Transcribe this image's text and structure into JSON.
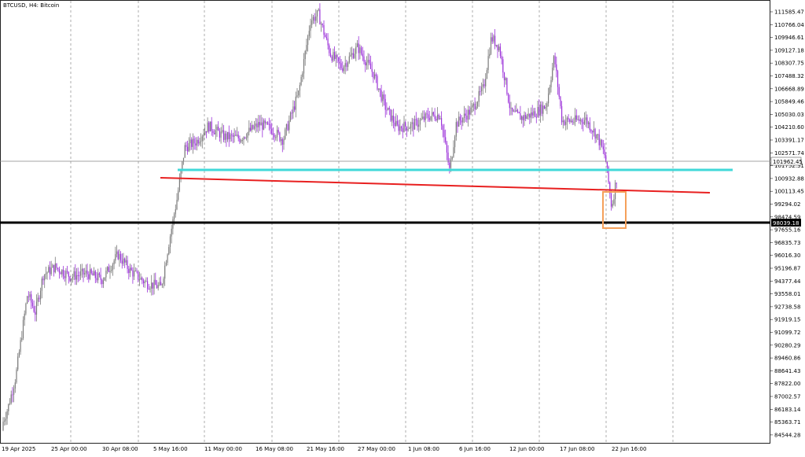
{
  "header": {
    "title": "BTCUSD, H4:  Bitcoin"
  },
  "colors": {
    "bull": "#7a7a7a",
    "bear": "#9b30d9",
    "cyan_line": "#40d8d8",
    "red_line": "#e82020",
    "black_line": "#000000",
    "box": "#f5a05a",
    "grid": "#9a9a9a",
    "axis": "#222222"
  },
  "price_axis": {
    "ticks": [
      "111585.47",
      "110766.04",
      "109946.61",
      "109127.18",
      "108307.75",
      "107488.32",
      "106668.89",
      "105849.46",
      "105030.03",
      "104210.60",
      "103391.17",
      "102571.74",
      "101752.31",
      "100932.88",
      "100113.45",
      "99294.02",
      "98474.59",
      "97655.16",
      "96835.73",
      "96016.30",
      "95196.87",
      "94377.44",
      "93558.01",
      "92738.58",
      "91919.15",
      "91099.72",
      "90280.29",
      "89460.86",
      "88641.43",
      "87822.00",
      "87002.57",
      "86183.14",
      "85363.71",
      "84544.28"
    ],
    "current_price_label": "101962.45",
    "level_label": "98039.18"
  },
  "time_axis": {
    "labels": [
      "19 Apr 2025",
      "25 Apr 00:00",
      "30 Apr 08:00",
      "5 May 16:00",
      "11 May 00:00",
      "16 May 08:00",
      "21 May 16:00",
      "27 May 00:00",
      "1 Jun 08:00",
      "6 Jun 16:00",
      "12 Jun 00:00",
      "17 Jun 08:00",
      "22 Jun 16:00"
    ]
  },
  "chart_data": {
    "type": "line",
    "title": "BTCUSD, H4:  Bitcoin",
    "ylim": [
      84000,
      112200
    ],
    "x": [
      "19 Apr 2025",
      "25 Apr 00:00",
      "30 Apr 08:00",
      "5 May 16:00",
      "11 May 00:00",
      "16 May 08:00",
      "21 May 16:00",
      "27 May 00:00",
      "1 Jun 08:00",
      "6 Jun 16:00",
      "12 Jun 00:00",
      "17 Jun 08:00",
      "22 Jun 16:00"
    ],
    "series": [
      {
        "values": [
          84800,
          94800,
          96200,
          94500,
          104200,
          103800,
          109500,
          107800,
          104800,
          108200,
          106200,
          105200,
          101962
        ]
      }
    ],
    "annotations": {
      "horizontal_support": 98039.18,
      "cyan_resistance": 101300,
      "red_trendline": {
        "from": 100800,
        "to": 99800
      },
      "current_price": 101962.45
    },
    "grid": true
  }
}
